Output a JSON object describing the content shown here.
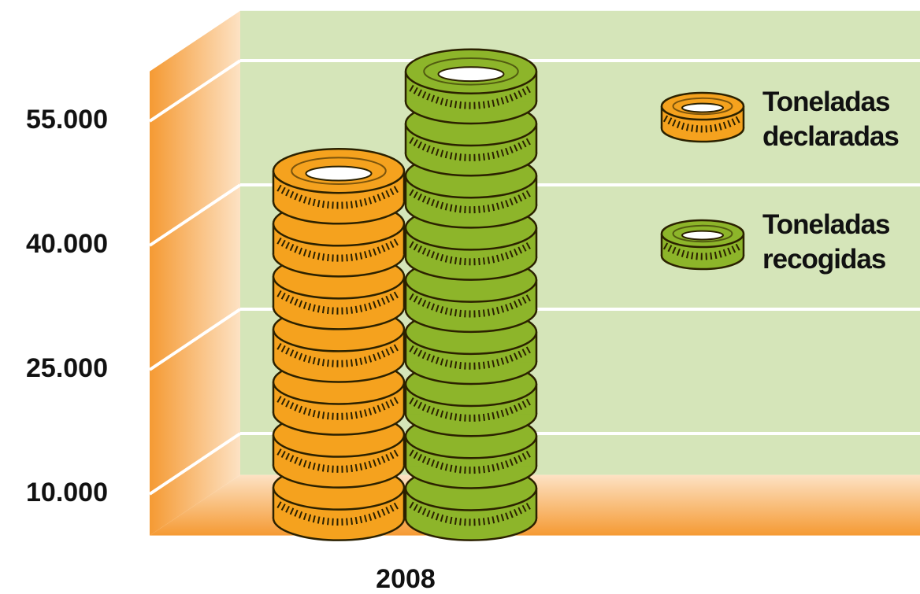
{
  "chart_data": {
    "type": "pictorial-bar",
    "categories": [
      "2008"
    ],
    "series": [
      {
        "name": "Toneladas declaradas",
        "color": "#f5a21e",
        "values": [
          49000
        ]
      },
      {
        "name": "Toneladas recogidas",
        "color": "#8db52a",
        "values": [
          61000
        ]
      }
    ],
    "ylim": [
      5000,
      61000
    ],
    "yticks": [
      {
        "value": 10000,
        "label": "10.000"
      },
      {
        "value": 25000,
        "label": "25.000"
      },
      {
        "value": 40000,
        "label": "40.000"
      },
      {
        "value": 55000,
        "label": "55.000"
      }
    ],
    "grid": true
  }
}
